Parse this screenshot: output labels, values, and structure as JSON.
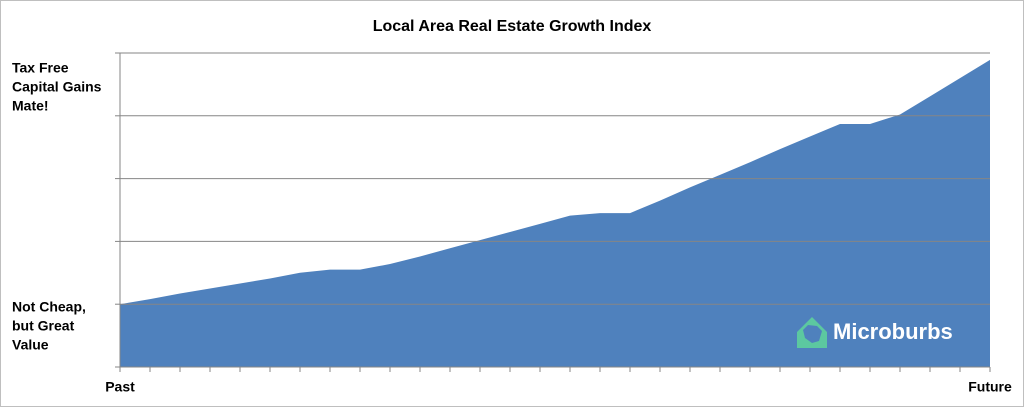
{
  "chart_data": {
    "type": "area",
    "title": "Local Area Real Estate Growth Index",
    "categories": [
      "Past",
      null,
      null,
      null,
      null,
      null,
      null,
      null,
      null,
      null,
      null,
      null,
      null,
      null,
      null,
      null,
      null,
      null,
      null,
      null,
      null,
      null,
      null,
      null,
      null,
      null,
      null,
      null,
      null,
      "Future"
    ],
    "values": [
      1.0,
      1.08,
      1.17,
      1.25,
      1.33,
      1.41,
      1.5,
      1.55,
      1.55,
      1.64,
      1.76,
      1.89,
      2.02,
      2.15,
      2.28,
      2.41,
      2.45,
      2.45,
      2.65,
      2.86,
      3.06,
      3.26,
      3.47,
      3.67,
      3.87,
      3.87,
      4.02,
      4.31,
      4.6,
      4.89
    ],
    "color": "#4f81bd",
    "ylim": [
      0,
      5
    ],
    "yticks": [
      0,
      1,
      2,
      3,
      4,
      5
    ],
    "grid": true,
    "annotations": [
      {
        "lines": [
          "Tax Free",
          "Capital Gains",
          "Mate!"
        ]
      },
      {
        "lines": [
          "Not Cheap,",
          "but Great",
          "Value"
        ]
      }
    ],
    "watermark": "Microburbs"
  }
}
